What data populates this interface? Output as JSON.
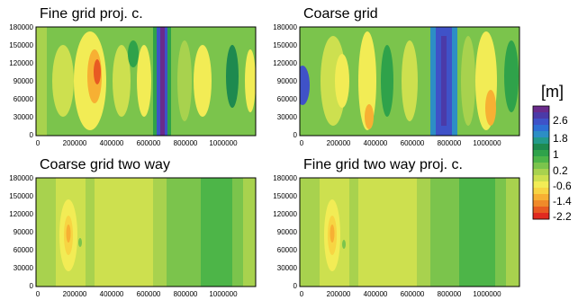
{
  "chart_data": [
    {
      "type": "heatmap",
      "title": "Fine grid proj. c.",
      "xlabel": "",
      "ylabel": "",
      "xlim": [
        0,
        1180000
      ],
      "ylim": [
        0,
        180000
      ],
      "x_ticks": [
        "0",
        "200000",
        "400000",
        "600000",
        "800000",
        "1000000"
      ],
      "y_ticks": [
        "0",
        "30000",
        "60000",
        "90000",
        "120000",
        "150000",
        "180000"
      ],
      "field_description": "wave-like pattern with strong negative (yellow/red) anomalies near x=300000 and a deep positive (blue/purple) band near x=660000; alternating green/yellow bands elsewhere"
    },
    {
      "type": "heatmap",
      "title": "Coarse grid",
      "xlabel": "",
      "ylabel": "",
      "xlim": [
        0,
        1180000
      ],
      "ylim": [
        0,
        180000
      ],
      "x_ticks": [
        "0",
        "200000",
        "400000",
        "600000",
        "800000",
        "1000000"
      ],
      "y_ticks": [
        "0",
        "30000",
        "60000",
        "90000",
        "120000",
        "150000",
        "180000"
      ],
      "field_description": "similar wave pattern, blue band near x=780000, blue patch at left edge near y=100000, yellow/orange lobes near x=350000 and x=1000000"
    },
    {
      "type": "heatmap",
      "title": "Coarse grid two way",
      "xlabel": "",
      "ylabel": "",
      "xlim": [
        0,
        1180000
      ],
      "ylim": [
        0,
        180000
      ],
      "x_ticks": [
        "0",
        "200000",
        "400000",
        "600000",
        "800000",
        "1000000"
      ],
      "y_ticks": [
        "0",
        "30000",
        "60000",
        "90000",
        "120000",
        "150000",
        "180000"
      ],
      "field_description": "nearly uniform vertical bands; orange/yellow lobe near x=150000, y=100000; greener band 880000-1050000"
    },
    {
      "type": "heatmap",
      "title": "Fine grid two way proj. c.",
      "xlabel": "",
      "ylabel": "",
      "xlim": [
        0,
        1180000
      ],
      "ylim": [
        0,
        180000
      ],
      "x_ticks": [
        "0",
        "200000",
        "400000",
        "600000",
        "800000",
        "1000000"
      ],
      "y_ticks": [
        "0",
        "30000",
        "60000",
        "90000",
        "120000",
        "150000",
        "180000"
      ],
      "field_description": "nearly uniform vertical bands; orange/yellow lobe near x=150000, y=100000; greener band 850000-1050000"
    }
  ],
  "colorbar": {
    "unit": "[m]",
    "labels": [
      "2.6",
      "1.8",
      "1",
      "0.2",
      "-0.6",
      "-1.4",
      "-2.2"
    ],
    "colors": [
      "#6a2b8c",
      "#4b3aa8",
      "#3f52c8",
      "#2e6fd4",
      "#2d8ec5",
      "#239a8a",
      "#1e8a4f",
      "#2fa24a",
      "#4db548",
      "#7bc44c",
      "#a8d24e",
      "#cde04f",
      "#f2ec55",
      "#f7d543",
      "#f7b033",
      "#f08a2a",
      "#e85a22",
      "#e02a20"
    ]
  }
}
